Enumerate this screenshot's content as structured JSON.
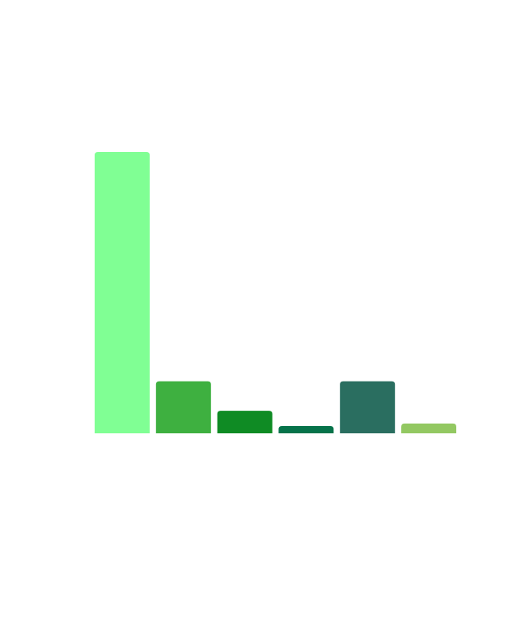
{
  "chart_data": {
    "type": "bar",
    "categories": [
      "",
      "",
      "",
      "",
      "",
      ""
    ],
    "values": [
      100,
      18.5,
      8,
      2.6,
      18.5,
      3.5
    ],
    "colors": [
      "#80ff94",
      "#3eb040",
      "#0f8b24",
      "#06734a",
      "#2a6e60",
      "#93c862"
    ],
    "ylim": [
      0,
      100
    ],
    "grid": false,
    "legend": "none",
    "title": "",
    "xlabel": "",
    "ylabel": ""
  }
}
